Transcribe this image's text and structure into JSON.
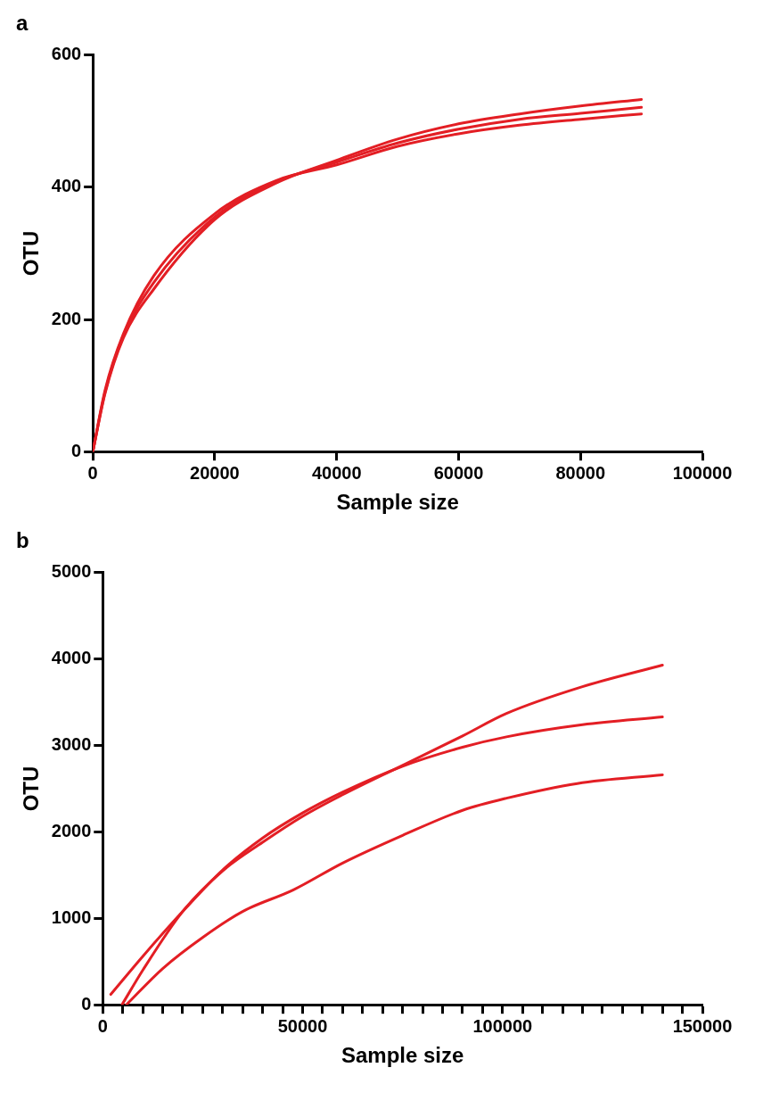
{
  "chart_data": [
    {
      "type": "line",
      "title": "a",
      "xlabel": "Sample size",
      "ylabel": "OTU",
      "xlim": [
        0,
        100000
      ],
      "ylim": [
        0,
        600
      ],
      "xticks": [
        0,
        20000,
        40000,
        60000,
        80000,
        100000
      ],
      "yticks": [
        0,
        200,
        400,
        600
      ],
      "marker": "none",
      "series": [
        {
          "color": "#e31e24",
          "x": [
            0,
            2000,
            5000,
            10000,
            20000,
            30000,
            40000,
            50000,
            60000,
            70000,
            80000,
            90000
          ],
          "values": [
            0,
            88,
            172,
            246,
            351,
            406,
            441,
            473,
            496,
            511,
            523,
            533
          ]
        },
        {
          "color": "#e31e24",
          "x": [
            0,
            2000,
            5000,
            10000,
            20000,
            30000,
            40000,
            50000,
            60000,
            70000,
            80000,
            90000
          ],
          "values": [
            0,
            90,
            175,
            256,
            355,
            408,
            438,
            467,
            488,
            503,
            512,
            521
          ]
        },
        {
          "color": "#e31e24",
          "x": [
            0,
            2000,
            5000,
            10000,
            20000,
            30000,
            40000,
            50000,
            60000,
            70000,
            80000,
            90000
          ],
          "values": [
            0,
            93,
            178,
            266,
            360,
            410,
            434,
            462,
            481,
            494,
            503,
            511
          ]
        }
      ]
    },
    {
      "type": "line",
      "title": "b",
      "xlabel": "Sample size",
      "ylabel": "OTU",
      "xlim": [
        0,
        150000
      ],
      "ylim": [
        0,
        5000
      ],
      "yticks": [
        0,
        1000,
        2000,
        3000,
        4000,
        5000
      ],
      "marker": "none",
      "xticks": [
        0,
        {
          "value": 5000,
          "label": null
        },
        {
          "value": 10000,
          "label": null
        },
        {
          "value": 15000,
          "label": null
        },
        {
          "value": 20000,
          "label": null
        },
        {
          "value": 25000,
          "label": null
        },
        {
          "value": 30000,
          "label": null
        },
        {
          "value": 35000,
          "label": null
        },
        {
          "value": 40000,
          "label": null
        },
        {
          "value": 45000,
          "label": null
        },
        50000,
        {
          "value": 55000,
          "label": null
        },
        {
          "value": 60000,
          "label": null
        },
        {
          "value": 65000,
          "label": null
        },
        {
          "value": 70000,
          "label": null
        },
        {
          "value": 75000,
          "label": null
        },
        {
          "value": 80000,
          "label": null
        },
        {
          "value": 85000,
          "label": null
        },
        {
          "value": 90000,
          "label": null
        },
        {
          "value": 95000,
          "label": null
        },
        100000,
        {
          "value": 105000,
          "label": null
        },
        {
          "value": 110000,
          "label": null
        },
        {
          "value": 115000,
          "label": null
        },
        {
          "value": 120000,
          "label": null
        },
        {
          "value": 125000,
          "label": null
        },
        {
          "value": 130000,
          "label": null
        },
        {
          "value": 135000,
          "label": null
        },
        {
          "value": 140000,
          "label": null
        },
        {
          "value": 145000,
          "label": null
        },
        150000
      ],
      "series": [
        {
          "color": "#e31e24",
          "x": [
            4800,
            10000,
            20000,
            30000,
            40000,
            50000,
            60000,
            75000,
            90000,
            101000,
            120000,
            140000
          ],
          "values": [
            0,
            400,
            1080,
            1550,
            1880,
            2180,
            2430,
            2770,
            3110,
            3370,
            3680,
            3930
          ]
        },
        {
          "color": "#e31e24",
          "x": [
            2000,
            10000,
            20000,
            30000,
            40000,
            50000,
            60000,
            75000,
            90000,
            101000,
            120000,
            140000
          ],
          "values": [
            120,
            560,
            1080,
            1560,
            1930,
            2220,
            2460,
            2760,
            2980,
            3100,
            3240,
            3330
          ]
        },
        {
          "color": "#e31e24",
          "x": [
            5900,
            15000,
            25300,
            35000,
            47700,
            60000,
            75000,
            90000,
            101000,
            118700,
            140000
          ],
          "values": [
            0,
            420,
            790,
            1080,
            1330,
            1640,
            1960,
            2250,
            2390,
            2560,
            2660
          ]
        }
      ]
    }
  ]
}
